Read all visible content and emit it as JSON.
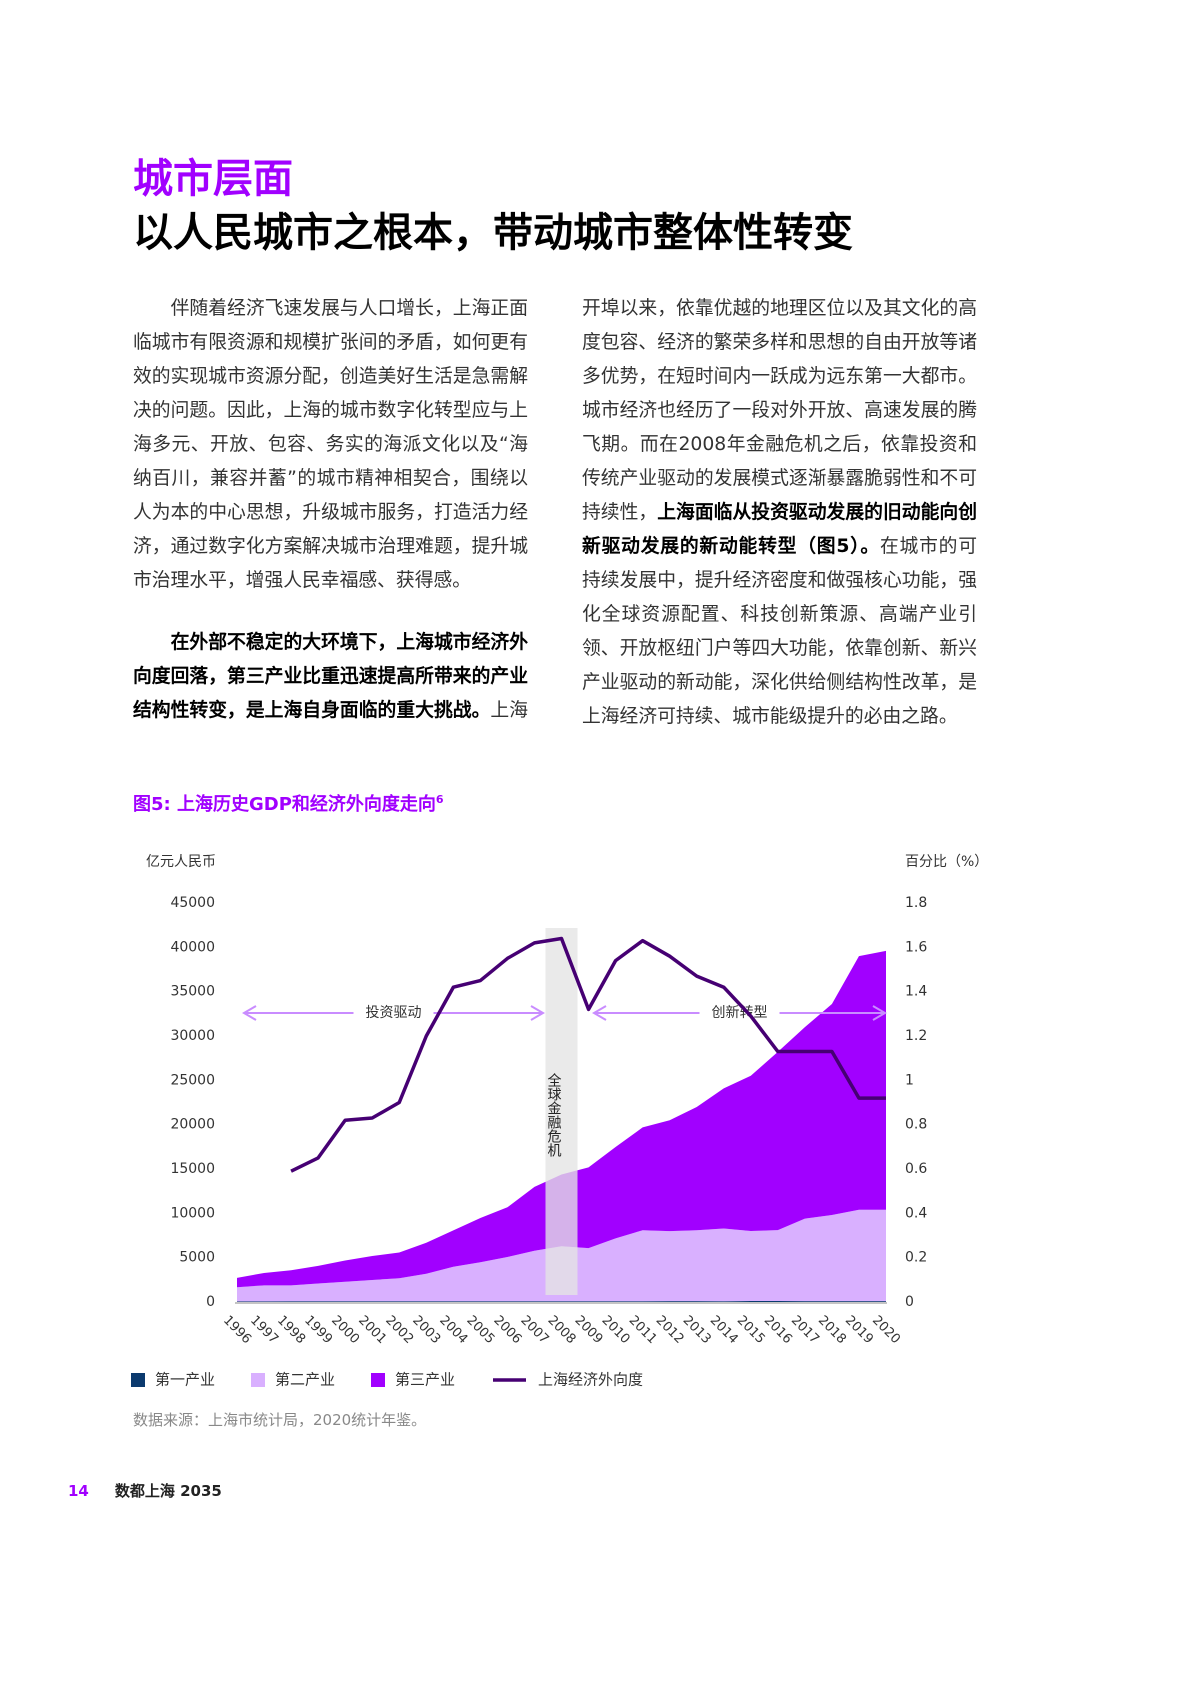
{
  "header": {
    "section": "城市层面",
    "title": "以人民城市之根本，带动城市整体性转变"
  },
  "body": {
    "paragraphs": [
      [
        {
          "text": "伴随着经济飞速发展与人口增长，上海正面临城市有限资源和规模扩张间的矛盾，如何更有效的实现城市资源分配，创造美好生活是急需解决的问题。因此，上海的城市数字化转型应与上海多元、开放、包容、务实的海派文化以及“海纳百川，兼容并蓄”的城市精神相契合，围绕以人为本的中心思想，升级城市服务，打造活力经济，通过数字化方案解决城市治理难题，提升城市治理水平，增强人民幸福感、获得感。",
          "bold": false
        }
      ],
      [
        {
          "text": "在外部不稳定的大环境下，上海城市经济外向度回落，第三产业比重迅速提高所带来的产业结构性转变，是上海自身面临的重大挑战。",
          "bold": true
        },
        {
          "text": "上海开埠以来，依靠优越的地理区位以及其文化的高度包容、经济的繁荣多样和思想的自由开放等诸多优势，在短时间内一跃成为远东第一大都市。城市经济也经历了一段对外开放、高速发展的腾飞期。而在2008年金融危机之后，依靠投资和传统产业驱动的发展模式逐渐暴露脆弱性和不可持续性，",
          "bold": false
        },
        {
          "text": "上海面临从投资驱动发展的旧动能向创新驱动发展的新动能转型（图5）。",
          "bold": true
        },
        {
          "text": "在城市的可持续发展中，提升经济密度和做强核心功能，强化全球资源配置、科技创新策源、高端产业引领、开放枢纽门户等四大功能，依靠创新、新兴产业驱动的新动能，深化供给侧结构性改革，是上海经济可持续、城市能级提升的必由之路。",
          "bold": false
        }
      ]
    ]
  },
  "figure": {
    "caption": "图5: 上海历史GDP和经济外向度走向",
    "caption_note": "6",
    "source": "数据来源：上海市统计局，2020统计年鉴。"
  },
  "chart_data": {
    "type": "area",
    "ylabel": "亿元人民币",
    "y2label": "百分比（%）",
    "categories": [
      "1996",
      "1997",
      "1998",
      "1999",
      "2000",
      "2001",
      "2002",
      "2003",
      "2004",
      "2005",
      "2006",
      "2007",
      "2008",
      "2009",
      "2010",
      "2011",
      "2012",
      "2013",
      "2014",
      "2015",
      "2016",
      "2017",
      "2018",
      "2019",
      "2020"
    ],
    "ylim": [
      0,
      45000
    ],
    "yticks": [
      0,
      5000,
      10000,
      15000,
      20000,
      25000,
      30000,
      35000,
      40000,
      45000
    ],
    "y2lim": [
      0,
      1.8
    ],
    "y2ticks": [
      0,
      0.2,
      0.4,
      0.6,
      0.8,
      1,
      1.2,
      1.4,
      1.6,
      1.8
    ],
    "stacked": true,
    "series": [
      {
        "name": "第一产业",
        "type": "area",
        "color": "#0b3a6e",
        "values": [
          70,
          75,
          80,
          80,
          80,
          85,
          85,
          80,
          80,
          80,
          80,
          80,
          85,
          80,
          80,
          90,
          95,
          95,
          90,
          110,
          110,
          100,
          105,
          105,
          105
        ]
      },
      {
        "name": "第二产业",
        "type": "area",
        "color": "#d9b0ff",
        "values": [
          1600,
          1800,
          1800,
          2000,
          2200,
          2400,
          2600,
          3100,
          3900,
          4400,
          5000,
          5700,
          6200,
          6000,
          7100,
          8000,
          7900,
          8000,
          8200,
          7900,
          8000,
          9300,
          9700,
          10300,
          10300
        ]
      },
      {
        "name": "第三产业",
        "type": "area",
        "color": "#a100ff",
        "values": [
          1050,
          1400,
          1700,
          2000,
          2400,
          2700,
          2900,
          3500,
          4100,
          5000,
          5600,
          7200,
          8100,
          9100,
          10300,
          11600,
          12500,
          13900,
          15800,
          17500,
          20100,
          21600,
          23800,
          28600,
          29200
        ]
      },
      {
        "name": "上海经济外向度",
        "type": "line",
        "axis": "y2",
        "color": "#460073",
        "values": [
          null,
          null,
          0.59,
          0.65,
          0.82,
          0.83,
          0.9,
          1.2,
          1.42,
          1.45,
          1.55,
          1.62,
          1.64,
          1.32,
          1.54,
          1.63,
          1.56,
          1.47,
          1.42,
          1.29,
          1.13,
          1.13,
          1.13,
          0.92,
          0.92
        ]
      }
    ],
    "annotations": [
      {
        "text": "投资驱动"
      },
      {
        "text": "创新转型"
      },
      {
        "text": "全球金融危机"
      }
    ]
  },
  "footer": {
    "page": "14",
    "publication": "数都上海 2035"
  }
}
